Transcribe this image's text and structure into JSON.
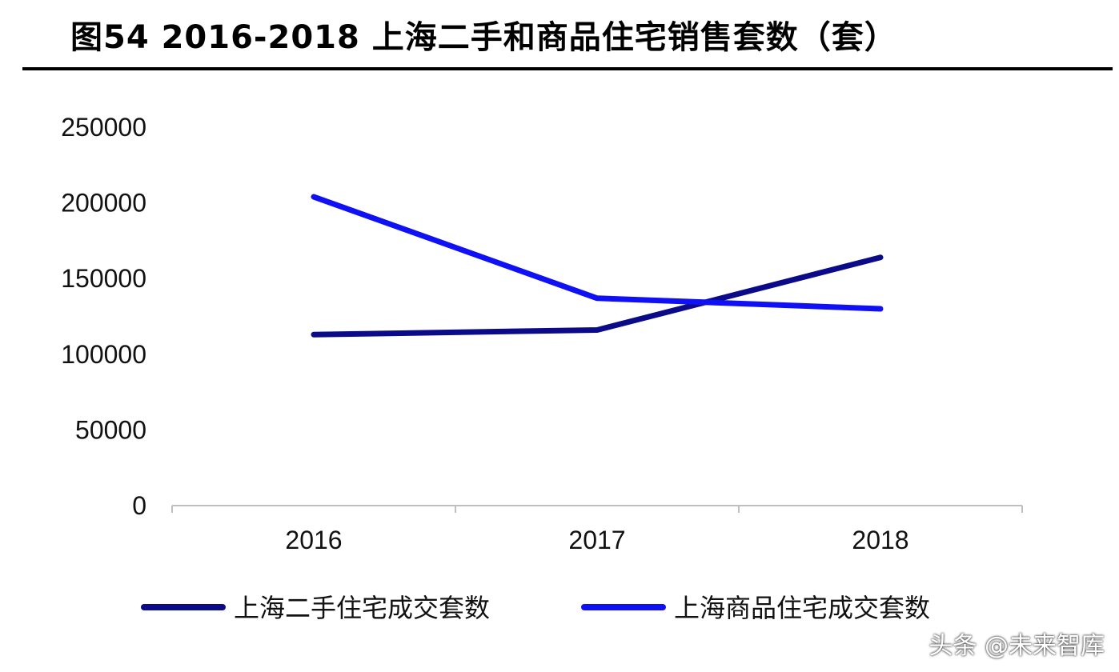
{
  "title": "图54 2016-2018 上海二手和商品住宅销售套数（套）",
  "watermark": "头条 @未来智库",
  "colors": {
    "series_second_hand": "#0b0b8a",
    "series_commercial": "#1010f5",
    "axis": "#bfbfbf"
  },
  "chart_data": {
    "type": "line",
    "title": "图54 2016-2018 上海二手和商品住宅销售套数（套）",
    "x": [
      "2016",
      "2017",
      "2018"
    ],
    "ylim": [
      0,
      250000
    ],
    "yticks": [
      0,
      50000,
      100000,
      150000,
      200000,
      250000
    ],
    "ytick_labels": [
      "0",
      "50000",
      "100000",
      "150000",
      "200000",
      "250000"
    ],
    "grid": false,
    "legend_position": "bottom",
    "series": [
      {
        "name": "上海二手住宅成交套数",
        "values": [
          113000,
          116000,
          164000
        ]
      },
      {
        "name": "上海商品住宅成交套数",
        "values": [
          204000,
          137000,
          130000
        ]
      }
    ]
  }
}
